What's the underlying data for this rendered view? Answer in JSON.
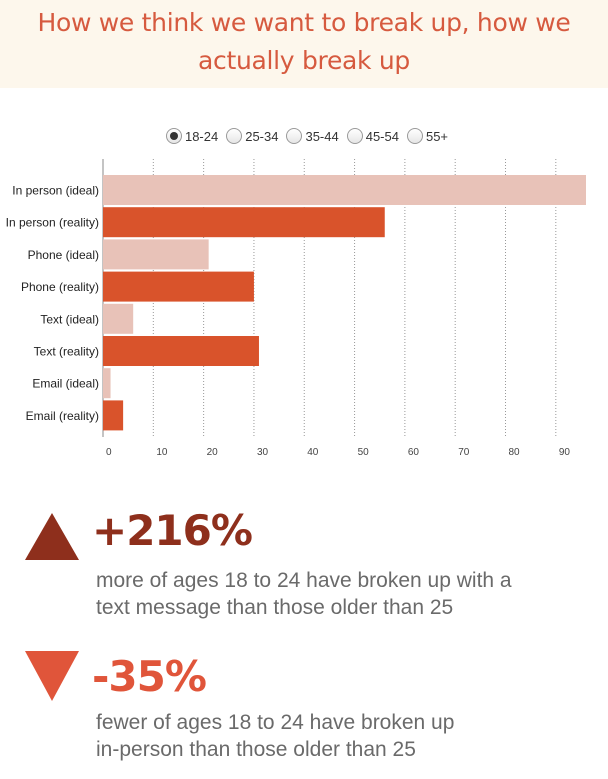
{
  "header": {
    "title": "How we think we want to break up, how we actually break up"
  },
  "legend": {
    "options": [
      {
        "label": "18-24",
        "selected": true
      },
      {
        "label": "25-34",
        "selected": false
      },
      {
        "label": "35-44",
        "selected": false
      },
      {
        "label": "45-54",
        "selected": false
      },
      {
        "label": "55+",
        "selected": false
      }
    ]
  },
  "colors": {
    "ideal": "#e8c2b8",
    "reality": "#d9532b",
    "title": "#d65a3f",
    "up_arrow": "#8e2f1c",
    "down_arrow": "#e0553a"
  },
  "chart_data": {
    "type": "bar",
    "orientation": "horizontal",
    "categories": [
      "In person (ideal)",
      "In person (reality)",
      "Phone (ideal)",
      "Phone (reality)",
      "Text (ideal)",
      "Text (reality)",
      "Email (ideal)",
      "Email (reality)"
    ],
    "values": [
      96,
      56,
      21,
      30,
      6,
      31,
      1.5,
      4
    ],
    "kinds": [
      "ideal",
      "reality",
      "ideal",
      "reality",
      "ideal",
      "reality",
      "ideal",
      "reality"
    ],
    "xticks": [
      0,
      10,
      20,
      30,
      40,
      50,
      60,
      70,
      80,
      90
    ],
    "xlim": [
      0,
      96
    ],
    "grid": "vertical-dotted"
  },
  "callouts": [
    {
      "direction": "up",
      "value": "+216%",
      "text_line1": "more of ages 18 to 24 have broken up with a",
      "text_line2": "text message than those older than 25"
    },
    {
      "direction": "down",
      "value": "-35%",
      "text_line1": "fewer of ages 18 to 24 have broken up",
      "text_line2": "in-person than those older than 25"
    }
  ]
}
